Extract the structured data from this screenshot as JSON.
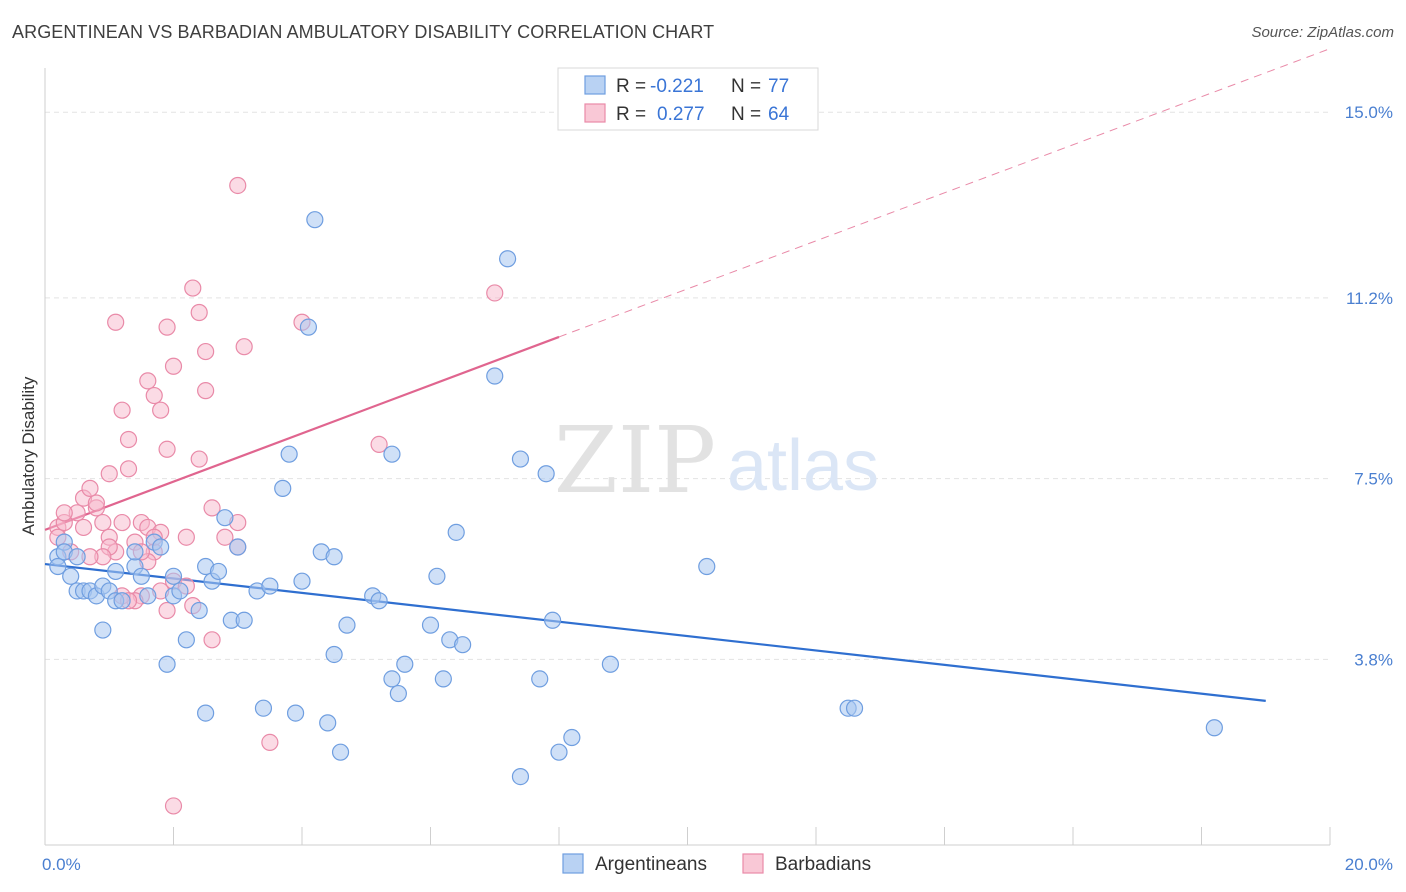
{
  "title": "ARGENTINEAN VS BARBADIAN AMBULATORY DISABILITY CORRELATION CHART",
  "source": "Source: ZipAtlas.com",
  "watermark": {
    "zip": "ZIP",
    "atlas": "atlas"
  },
  "colors": {
    "blue_fill": "#a8c6f0",
    "blue_stroke": "#6f9ee0",
    "blue_line": "#2f6fd0",
    "pink_fill": "#f7b8cb",
    "pink_stroke": "#e98aa8",
    "pink_line": "#e0658f",
    "grid": "#e3e3e3",
    "tick_label": "#4a7fd0"
  },
  "legend": {
    "rows": [
      {
        "r_label": "R =",
        "r_value": "-0.221",
        "n_label": "N =",
        "n_value": "77",
        "series": "blue"
      },
      {
        "r_label": "R =",
        "r_value": "0.277",
        "n_label": "N =",
        "n_value": "64",
        "series": "pink"
      }
    ]
  },
  "bottom_legend": [
    "Argentineans",
    "Barbadians"
  ],
  "chart_data": {
    "type": "scatter",
    "title": "ARGENTINEAN VS BARBADIAN AMBULATORY DISABILITY CORRELATION CHART",
    "xlabel": "",
    "ylabel": "Ambulatory Disability",
    "xlim": [
      0,
      20
    ],
    "ylim": [
      0,
      15.7
    ],
    "x_tick_labels": [
      "0.0%",
      "20.0%"
    ],
    "y_ticks": [
      3.8,
      7.5,
      11.2,
      15.0
    ],
    "y_tick_labels": [
      "3.8%",
      "7.5%",
      "11.2%",
      "15.0%"
    ],
    "grid": true,
    "legend_position": "top-center",
    "series": [
      {
        "name": "Argentineans",
        "color": "blue",
        "trend": {
          "x": [
            0,
            19.0
          ],
          "y": [
            5.75,
            2.95
          ]
        },
        "points": [
          [
            0.3,
            6.2
          ],
          [
            0.2,
            5.9
          ],
          [
            0.3,
            6.0
          ],
          [
            0.2,
            5.7
          ],
          [
            0.4,
            5.5
          ],
          [
            0.5,
            5.2
          ],
          [
            0.6,
            5.2
          ],
          [
            0.7,
            5.2
          ],
          [
            0.8,
            5.1
          ],
          [
            0.9,
            5.3
          ],
          [
            1.0,
            5.2
          ],
          [
            1.1,
            5.0
          ],
          [
            1.2,
            5.0
          ],
          [
            1.1,
            5.6
          ],
          [
            0.9,
            4.4
          ],
          [
            1.4,
            5.7
          ],
          [
            1.5,
            5.5
          ],
          [
            1.4,
            6.0
          ],
          [
            1.6,
            5.1
          ],
          [
            1.7,
            6.2
          ],
          [
            1.8,
            6.1
          ],
          [
            1.9,
            3.7
          ],
          [
            2.0,
            5.5
          ],
          [
            2.0,
            5.1
          ],
          [
            2.1,
            5.2
          ],
          [
            2.2,
            4.2
          ],
          [
            2.4,
            4.8
          ],
          [
            2.5,
            5.7
          ],
          [
            2.6,
            5.4
          ],
          [
            2.7,
            5.6
          ],
          [
            2.8,
            6.7
          ],
          [
            2.9,
            4.6
          ],
          [
            3.0,
            6.1
          ],
          [
            3.1,
            4.6
          ],
          [
            3.3,
            5.2
          ],
          [
            3.5,
            5.3
          ],
          [
            3.7,
            7.3
          ],
          [
            3.8,
            8.0
          ],
          [
            3.9,
            2.7
          ],
          [
            4.0,
            5.4
          ],
          [
            4.2,
            12.8
          ],
          [
            4.1,
            10.6
          ],
          [
            4.3,
            6.0
          ],
          [
            4.4,
            2.5
          ],
          [
            4.5,
            3.9
          ],
          [
            4.5,
            5.9
          ],
          [
            4.7,
            4.5
          ],
          [
            4.6,
            1.9
          ],
          [
            5.1,
            5.1
          ],
          [
            5.2,
            5.0
          ],
          [
            5.4,
            3.4
          ],
          [
            5.5,
            3.1
          ],
          [
            5.6,
            3.7
          ],
          [
            5.4,
            8.0
          ],
          [
            6.0,
            4.5
          ],
          [
            6.1,
            5.5
          ],
          [
            6.2,
            3.4
          ],
          [
            6.3,
            4.2
          ],
          [
            6.5,
            4.1
          ],
          [
            6.4,
            6.4
          ],
          [
            7.0,
            9.6
          ],
          [
            7.2,
            12.0
          ],
          [
            7.4,
            7.9
          ],
          [
            7.4,
            1.4
          ],
          [
            7.7,
            3.4
          ],
          [
            7.8,
            7.6
          ],
          [
            8.0,
            1.9
          ],
          [
            8.2,
            2.2
          ],
          [
            8.8,
            3.7
          ],
          [
            7.9,
            4.6
          ],
          [
            10.3,
            5.7
          ],
          [
            12.5,
            2.8
          ],
          [
            12.6,
            2.8
          ],
          [
            18.2,
            2.4
          ],
          [
            0.5,
            5.9
          ],
          [
            2.5,
            2.7
          ],
          [
            3.4,
            2.8
          ]
        ]
      },
      {
        "name": "Barbadians",
        "color": "pink",
        "trend": {
          "x": [
            0,
            8.0
          ],
          "y": [
            6.45,
            10.4
          ]
        },
        "trend_ext": {
          "x": [
            8.0,
            20.0
          ],
          "y": [
            10.4,
            16.3
          ]
        },
        "points": [
          [
            0.2,
            6.5
          ],
          [
            0.3,
            6.6
          ],
          [
            0.2,
            6.3
          ],
          [
            0.4,
            6.0
          ],
          [
            0.5,
            6.8
          ],
          [
            0.6,
            7.1
          ],
          [
            0.6,
            6.5
          ],
          [
            0.7,
            7.3
          ],
          [
            0.8,
            6.9
          ],
          [
            0.8,
            7.0
          ],
          [
            0.9,
            6.6
          ],
          [
            1.0,
            6.3
          ],
          [
            1.0,
            7.6
          ],
          [
            1.1,
            6.0
          ],
          [
            1.2,
            6.6
          ],
          [
            1.3,
            7.7
          ],
          [
            1.4,
            6.2
          ],
          [
            1.5,
            6.6
          ],
          [
            1.6,
            6.5
          ],
          [
            1.7,
            6.0
          ],
          [
            1.8,
            6.4
          ],
          [
            1.7,
            6.3
          ],
          [
            1.6,
            5.8
          ],
          [
            1.5,
            5.1
          ],
          [
            1.4,
            5.0
          ],
          [
            1.8,
            5.2
          ],
          [
            1.9,
            4.8
          ],
          [
            2.0,
            5.4
          ],
          [
            2.2,
            5.3
          ],
          [
            2.3,
            4.9
          ],
          [
            1.2,
            8.9
          ],
          [
            1.3,
            8.3
          ],
          [
            1.1,
            10.7
          ],
          [
            1.6,
            9.5
          ],
          [
            1.7,
            9.2
          ],
          [
            1.8,
            8.9
          ],
          [
            1.9,
            8.1
          ],
          [
            1.9,
            10.6
          ],
          [
            2.0,
            9.8
          ],
          [
            2.3,
            11.4
          ],
          [
            2.4,
            10.9
          ],
          [
            2.5,
            10.1
          ],
          [
            2.5,
            9.3
          ],
          [
            2.4,
            7.9
          ],
          [
            2.6,
            4.2
          ],
          [
            2.6,
            6.9
          ],
          [
            2.8,
            6.3
          ],
          [
            3.0,
            6.6
          ],
          [
            3.0,
            6.1
          ],
          [
            3.1,
            10.2
          ],
          [
            3.0,
            13.5
          ],
          [
            3.5,
            2.1
          ],
          [
            4.0,
            10.7
          ],
          [
            5.2,
            8.2
          ],
          [
            7.0,
            11.3
          ],
          [
            2.0,
            0.8
          ],
          [
            1.0,
            6.1
          ],
          [
            0.9,
            5.9
          ],
          [
            0.7,
            5.9
          ],
          [
            1.5,
            6.0
          ],
          [
            2.2,
            6.3
          ],
          [
            1.2,
            5.1
          ],
          [
            1.3,
            5.0
          ],
          [
            0.3,
            6.8
          ]
        ]
      }
    ]
  }
}
